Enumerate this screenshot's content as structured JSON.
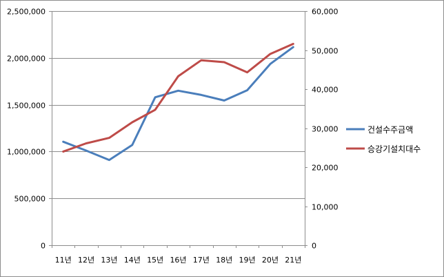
{
  "chart_data": {
    "type": "line",
    "categories": [
      "11년",
      "12년",
      "13년",
      "14년",
      "15년",
      "16년",
      "17년",
      "18년",
      "19년",
      "20년",
      "21년"
    ],
    "series": [
      {
        "name": "건설수주금액",
        "axis": "left",
        "color": "#4a7ebb",
        "values": [
          1105000,
          1010000,
          910000,
          1070000,
          1580000,
          1650000,
          1605000,
          1545000,
          1655000,
          1935000,
          2115000
        ]
      },
      {
        "name": "승강기설치대수",
        "axis": "right",
        "color": "#be4b48",
        "values": [
          24000,
          26100,
          27500,
          31500,
          34700,
          43300,
          47400,
          46900,
          44300,
          49000,
          51600
        ]
      }
    ],
    "y_left": {
      "min": 0,
      "max": 2500000,
      "step": 500000,
      "tick_labels": [
        "0",
        "500,000",
        "1,000,000",
        "1,500,000",
        "2,000,000",
        "2,500,000"
      ]
    },
    "y_right": {
      "min": 0,
      "max": 60000,
      "step": 10000,
      "tick_labels": [
        "0",
        "10,000",
        "20,000",
        "30,000",
        "40,000",
        "50,000",
        "60,000"
      ]
    },
    "grid": true,
    "legend_position": "right"
  }
}
